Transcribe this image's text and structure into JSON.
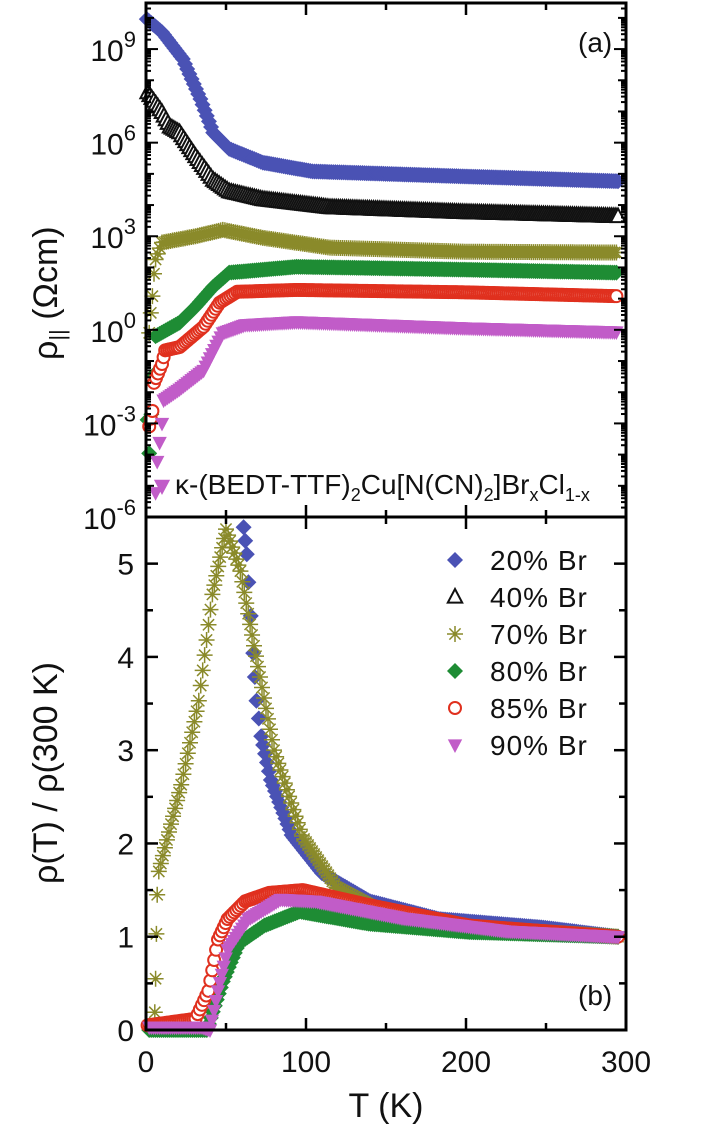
{
  "chart_data": [
    {
      "panel": "(a)",
      "type": "scatter",
      "xlabel": "T (K)",
      "ylabel": "ρ|| (Ωcm)",
      "yscale": "log",
      "xlim": [
        0,
        300
      ],
      "ylim": [
        1e-06,
        30000000000.0
      ],
      "xticks": [
        0,
        100,
        200,
        300
      ],
      "yticks_exponents": [
        -6,
        -3,
        0,
        3,
        6,
        9
      ],
      "annotation": [
        [
          "κ-(BEDT-TTF)",
          ""
        ],
        [
          "2",
          "sub"
        ],
        [
          "Cu[N(CN)",
          ""
        ],
        [
          "2",
          "sub"
        ],
        [
          "]Br",
          ""
        ],
        [
          "x",
          "sub"
        ],
        [
          "Cl",
          ""
        ],
        [
          "1-x",
          "sub"
        ]
      ],
      "series": [
        {
          "name": "20% Br",
          "marker": "diamond",
          "color": "#4a52b4",
          "x": [
            0.5,
            10,
            23,
            34,
            42,
            52,
            73,
            104,
            198,
            295
          ],
          "y": [
            9100000000.0,
            3500000000.0,
            480000000.0,
            25000000.0,
            2100000.0,
            630000.0,
            230000.0,
            120000.0,
            83000.0,
            58000.0
          ]
        },
        {
          "name": "40% Br",
          "marker": "triangle-open",
          "color": "#111111",
          "x": [
            1,
            10,
            15,
            21,
            31,
            42,
            52,
            73,
            115,
            198,
            295
          ],
          "y": [
            40000000.0,
            9300000.0,
            3200000.0,
            2100000.0,
            360000.0,
            63000.0,
            27000.0,
            15000.0,
            8300.0,
            5800.0,
            4300.0
          ]
        },
        {
          "name": "70% Br",
          "marker": "asterisk",
          "color": "#8a8a2a",
          "x": [
            2,
            3,
            4,
            5,
            6,
            10,
            31,
            48,
            73,
            115,
            198,
            294
          ],
          "y": [
            0.8,
            3.5,
            12,
            63,
            180,
            630,
            1000,
            1600,
            890,
            430,
            320,
            300
          ]
        },
        {
          "name": "80% Br",
          "marker": "diamond",
          "color": "#1e8c34",
          "x": [
            1,
            2,
            6,
            21,
            31,
            42,
            52,
            94,
            198,
            294
          ],
          "y": [
            0.0013,
            0.00011,
            0.63,
            1.7,
            5.5,
            24,
            68,
            105,
            85,
            68
          ]
        },
        {
          "name": "85% Br",
          "marker": "circle-open",
          "color": "#e0301e",
          "x": [
            2,
            4,
            5,
            10,
            12,
            21,
            36,
            46,
            57,
            94,
            198,
            294
          ],
          "y": [
            0.0008,
            0.0025,
            0.02,
            0.08,
            0.22,
            0.28,
            1.26,
            7.4,
            16.6,
            19,
            16,
            12
          ]
        },
        {
          "name": "90% Br",
          "marker": "triangle-down",
          "color": "#c15cc8",
          "x": [
            6,
            7,
            10,
            11,
            21,
            36,
            48,
            62,
            94,
            198,
            294
          ],
          "y": [
            6e-06,
            6e-05,
            0.001,
            0.0056,
            0.0126,
            0.05,
            0.8,
            1.45,
            1.8,
            1.15,
            0.85
          ]
        }
      ]
    },
    {
      "panel": "(b)",
      "type": "scatter",
      "xlabel": "T (K)",
      "ylabel": "ρ(T) / ρ(300 K)",
      "xlim": [
        0,
        300
      ],
      "ylim": [
        0,
        5.5
      ],
      "xticks": [
        0,
        100,
        200,
        300
      ],
      "yticks": [
        0,
        1,
        2,
        3,
        4,
        5
      ],
      "legend": "top-right",
      "series": [
        {
          "name": "20% Br",
          "marker": "diamond",
          "color": "#4a52b4",
          "x": [
            61,
            63,
            64,
            65.5,
            67,
            69,
            72,
            78,
            91,
            110,
            140,
            183,
            247,
            295
          ],
          "y": [
            5.39,
            5.1,
            4.8,
            4.44,
            4.04,
            3.53,
            3.15,
            2.68,
            2.09,
            1.68,
            1.38,
            1.19,
            1.1,
            1.0
          ]
        },
        {
          "name": "40% Br",
          "marker": "triangle-open",
          "color": "#111111",
          "x": [],
          "y": []
        },
        {
          "name": "70% Br",
          "marker": "asterisk",
          "color": "#8a8a2a",
          "x": [
            5,
            5.5,
            6,
            6.5,
            7,
            8,
            22,
            33,
            41.5,
            50,
            59,
            67.5,
            80,
            97.5,
            119,
            151,
            200,
            295
          ],
          "y": [
            0.05,
            0.19,
            0.55,
            1.03,
            1.45,
            1.7,
            2.63,
            3.53,
            4.67,
            5.37,
            4.92,
            4.12,
            3.0,
            2.08,
            1.53,
            1.24,
            1.1,
            1.0
          ]
        },
        {
          "name": "80% Br",
          "marker": "diamond",
          "color": "#1e8c34",
          "x": [
            2,
            38,
            48,
            58,
            74,
            96,
            139,
            202,
            295
          ],
          "y": [
            0.0,
            0.0,
            0.52,
            0.93,
            1.12,
            1.27,
            1.14,
            1.05,
            1.0
          ]
        },
        {
          "name": "85% Br",
          "marker": "circle-open",
          "color": "#e0301e",
          "x": [
            1,
            31,
            39,
            45,
            51,
            62,
            77,
            98,
            139,
            202,
            295
          ],
          "y": [
            0.05,
            0.12,
            0.42,
            0.97,
            1.19,
            1.38,
            1.47,
            1.5,
            1.34,
            1.12,
            1.0
          ]
        },
        {
          "name": "90% Br",
          "marker": "triangle-down",
          "color": "#c15cc8",
          "x": [
            2,
            35,
            40,
            45,
            51,
            64,
            84,
            106,
            160,
            225,
            295
          ],
          "y": [
            0.03,
            0.03,
            0.0,
            0.42,
            0.86,
            1.19,
            1.4,
            1.38,
            1.2,
            1.06,
            1.0
          ]
        }
      ]
    }
  ],
  "labels": {
    "panel_a": "(a)",
    "panel_b": "(b)",
    "ylabel_a_main": "ρ",
    "ylabel_a_sub": "||",
    "ylabel_a_unit": " (Ωcm)",
    "ylabel_b": "ρ(T) / ρ(300 K)",
    "xlabel": "T (K)"
  }
}
